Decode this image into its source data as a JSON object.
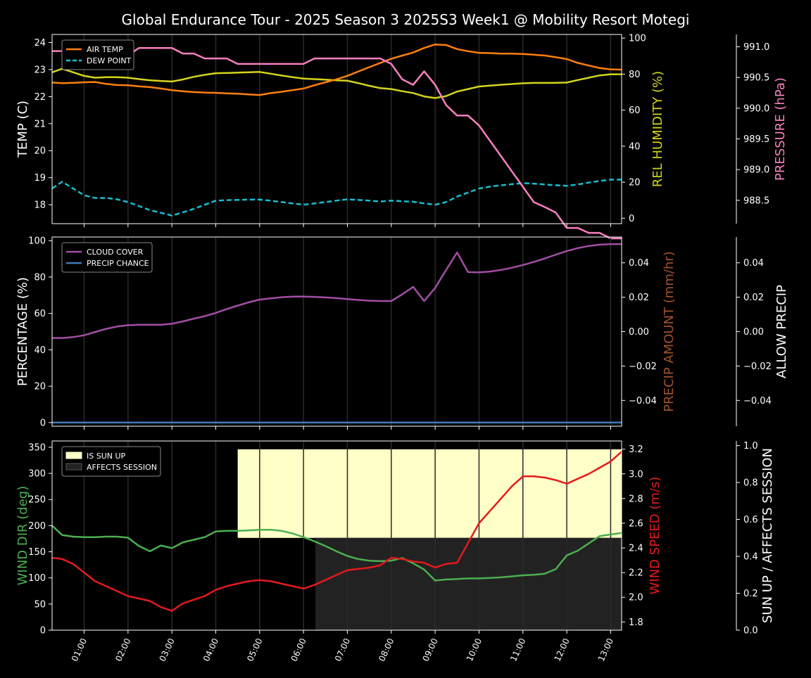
{
  "title": "Global Endurance Tour - 2025 Season 3 2025S3 Week1 @ Mobility Resort Motegi",
  "colors": {
    "air_temp": "#ff7f0e",
    "dew_point": "#17becf",
    "humidity": "#d4d41c",
    "pressure": "#f77fbf",
    "cloud": "#a24ea3",
    "precip_chance": "#4477bb",
    "precip_amount_label": "#a0522d",
    "wind_dir": "#4caf50",
    "wind_speed": "#e31a1c",
    "sun_up": "#ffffc8",
    "affects_session": "#222222"
  },
  "chart_data": [
    {
      "type": "line",
      "panel": "temperature",
      "xlabel": "",
      "x_ticks": [
        "01:00",
        "02:00",
        "03:00",
        "04:00",
        "05:00",
        "06:00",
        "07:00",
        "08:00",
        "09:00",
        "10:00",
        "11:00",
        "12:00",
        "13:00"
      ],
      "xlim": [
        0.27,
        13.25
      ],
      "ylabel": "TEMP (C)",
      "ylim": [
        17.3,
        24.3
      ],
      "y_ticks": [
        "18",
        "19",
        "20",
        "21",
        "22",
        "23",
        "24"
      ],
      "y2label": "REL HUMIDITY (%)",
      "y2lim": [
        -3,
        102
      ],
      "y2_ticks": [
        "0",
        "20",
        "40",
        "60",
        "80",
        "100"
      ],
      "y3label": "PRESSURE (hPa)",
      "y3lim": [
        988.12,
        991.2
      ],
      "y3_ticks": [
        "988.5",
        "989.0",
        "989.5",
        "990.0",
        "990.5",
        "991.0"
      ],
      "legend_position": "top-left",
      "series": [
        {
          "name": "AIR TEMP",
          "axis": "y",
          "style": "solid",
          "x": [
            0.27,
            0.5,
            0.75,
            1.0,
            1.25,
            1.5,
            1.75,
            2.0,
            2.25,
            2.5,
            2.75,
            3.0,
            3.25,
            3.5,
            3.75,
            4.0,
            4.25,
            4.5,
            4.75,
            5.0,
            5.25,
            5.5,
            5.75,
            6.0,
            6.25,
            6.5,
            6.75,
            7.0,
            7.25,
            7.5,
            7.75,
            8.0,
            8.25,
            8.5,
            8.75,
            9.0,
            9.25,
            9.5,
            9.75,
            10.0,
            10.25,
            10.5,
            10.75,
            11.0,
            11.25,
            11.5,
            11.75,
            12.0,
            12.25,
            12.5,
            12.75,
            13.0,
            13.25
          ],
          "values": [
            22.52,
            22.5,
            22.51,
            22.53,
            22.54,
            22.47,
            22.43,
            22.42,
            22.38,
            22.35,
            22.3,
            22.24,
            22.2,
            22.17,
            22.15,
            22.14,
            22.12,
            22.11,
            22.08,
            22.06,
            22.13,
            22.18,
            22.24,
            22.3,
            22.42,
            22.53,
            22.64,
            22.77,
            22.93,
            23.09,
            23.25,
            23.4,
            23.52,
            23.63,
            23.8,
            23.93,
            23.91,
            23.76,
            23.68,
            23.62,
            23.61,
            23.59,
            23.59,
            23.58,
            23.55,
            23.52,
            23.46,
            23.39,
            23.25,
            23.15,
            23.06,
            23.01,
            23.0
          ]
        },
        {
          "name": "DEW POINT",
          "axis": "y",
          "style": "dashed",
          "x": [
            0.27,
            0.5,
            0.75,
            1.0,
            1.25,
            1.5,
            1.75,
            2.0,
            2.25,
            2.5,
            2.75,
            3.0,
            3.25,
            3.5,
            3.75,
            4.0,
            4.25,
            4.5,
            4.75,
            5.0,
            5.25,
            5.5,
            5.75,
            6.0,
            6.25,
            6.5,
            6.75,
            7.0,
            7.25,
            7.5,
            7.75,
            8.0,
            8.25,
            8.5,
            8.75,
            9.0,
            9.25,
            9.5,
            9.75,
            10.0,
            10.25,
            10.5,
            10.75,
            11.0,
            11.25,
            11.5,
            11.75,
            12.0,
            12.25,
            12.5,
            12.75,
            13.0,
            13.25
          ],
          "values": [
            18.6,
            18.85,
            18.6,
            18.35,
            18.25,
            18.25,
            18.2,
            18.1,
            17.95,
            17.8,
            17.7,
            17.6,
            17.72,
            17.85,
            18.0,
            18.15,
            18.17,
            18.18,
            18.19,
            18.19,
            18.15,
            18.1,
            18.05,
            18.0,
            18.05,
            18.1,
            18.15,
            18.2,
            18.18,
            18.15,
            18.12,
            18.15,
            18.13,
            18.11,
            18.05,
            18.0,
            18.1,
            18.3,
            18.45,
            18.6,
            18.67,
            18.72,
            18.76,
            18.8,
            18.78,
            18.75,
            18.72,
            18.7,
            18.75,
            18.82,
            18.88,
            18.93,
            18.93
          ]
        },
        {
          "name": "REL HUMIDITY",
          "axis": "y2",
          "style": "solid",
          "x": [
            0.27,
            0.5,
            0.75,
            1.0,
            1.25,
            1.5,
            1.75,
            2.0,
            2.25,
            2.5,
            2.75,
            3.0,
            3.25,
            3.5,
            3.75,
            4.0,
            4.25,
            4.5,
            4.75,
            5.0,
            5.25,
            5.5,
            5.75,
            6.0,
            6.25,
            6.5,
            6.75,
            7.0,
            7.25,
            7.5,
            7.75,
            8.0,
            8.25,
            8.5,
            8.75,
            9.0,
            9.25,
            9.5,
            9.75,
            10.0,
            10.25,
            10.5,
            10.75,
            11.0,
            11.25,
            11.5,
            11.75,
            12.0,
            12.25,
            12.5,
            12.75,
            13.0,
            13.25
          ],
          "values": [
            81,
            83,
            81,
            79,
            78,
            78.3,
            78.3,
            78,
            77.2,
            76.6,
            76.2,
            75.9,
            77,
            78.5,
            79.6,
            80.5,
            80.6,
            80.8,
            81,
            81.2,
            80.2,
            79.2,
            78.3,
            77.5,
            77.2,
            76.9,
            76.5,
            76.3,
            75,
            73.5,
            72.2,
            71.7,
            70.5,
            69.5,
            67.6,
            66.7,
            67.8,
            70.3,
            71.7,
            73.1,
            73.6,
            74.1,
            74.5,
            74.9,
            75.1,
            75.1,
            75.2,
            75.3,
            76.7,
            78,
            79.3,
            79.9,
            79.9
          ]
        },
        {
          "name": "PRESSURE",
          "axis": "y3",
          "style": "solid",
          "x": [
            0.27,
            0.5,
            0.75,
            1.0,
            1.25,
            1.5,
            1.75,
            2.0,
            2.25,
            2.5,
            2.75,
            3.0,
            3.25,
            3.5,
            3.75,
            4.0,
            4.25,
            4.5,
            4.75,
            5.0,
            5.25,
            5.5,
            5.75,
            6.0,
            6.25,
            6.5,
            6.75,
            7.0,
            7.25,
            7.5,
            7.75,
            8.0,
            8.25,
            8.5,
            8.75,
            9.0,
            9.25,
            9.5,
            9.75,
            10.0,
            10.25,
            10.5,
            10.75,
            11.0,
            11.25,
            11.5,
            11.75,
            12.0,
            12.25,
            12.5,
            12.75,
            13.0,
            13.25
          ],
          "values": [
            990.93,
            990.93,
            991.02,
            991.1,
            991.06,
            990.98,
            990.9,
            990.86,
            990.98,
            990.98,
            990.98,
            990.98,
            990.89,
            990.89,
            990.81,
            990.81,
            990.81,
            990.72,
            990.72,
            990.72,
            990.72,
            990.72,
            990.72,
            990.72,
            990.81,
            990.81,
            990.81,
            990.81,
            990.81,
            990.81,
            990.81,
            990.72,
            990.47,
            990.38,
            990.6,
            990.38,
            990.05,
            989.88,
            989.88,
            989.72,
            989.47,
            989.22,
            988.97,
            988.72,
            988.47,
            988.39,
            988.3,
            988.05,
            988.05,
            987.97,
            987.97,
            987.88,
            987.88
          ]
        }
      ]
    },
    {
      "type": "line",
      "panel": "precipitation",
      "ylabel": "PERCENTAGE (%)",
      "ylim": [
        -2,
        102
      ],
      "y_ticks": [
        "0",
        "20",
        "40",
        "60",
        "80",
        "100"
      ],
      "y2label": "PRECIP AMOUNT (mm/hr)",
      "y2lim": [
        -0.055,
        0.055
      ],
      "y2_ticks": [
        "−0.04",
        "−0.02",
        "0.00",
        "0.02",
        "0.04"
      ],
      "y3label": "ALLOW PRECIP",
      "y3lim": [
        -0.055,
        0.055
      ],
      "y3_ticks": [
        "−0.04",
        "−0.02",
        "0.00",
        "0.02",
        "0.04"
      ],
      "legend_position": "top-left",
      "series": [
        {
          "name": "CLOUD COVER",
          "axis": "y",
          "x": [
            0.27,
            0.5,
            0.75,
            1.0,
            1.25,
            1.5,
            1.75,
            2.0,
            2.25,
            2.5,
            2.75,
            3.0,
            3.25,
            3.5,
            3.75,
            4.0,
            4.25,
            4.5,
            4.75,
            5.0,
            5.25,
            5.5,
            5.75,
            6.0,
            6.25,
            6.5,
            6.75,
            7.0,
            7.25,
            7.5,
            7.75,
            8.0,
            8.25,
            8.5,
            8.75,
            9.0,
            9.25,
            9.5,
            9.75,
            10.0,
            10.25,
            10.5,
            10.75,
            11.0,
            11.25,
            11.5,
            11.75,
            12.0,
            12.25,
            12.5,
            12.75,
            13.0,
            13.25
          ],
          "values": [
            46.5,
            46.5,
            47,
            48,
            49.8,
            51.5,
            52.8,
            53.5,
            53.8,
            53.8,
            53.8,
            54.3,
            55.6,
            57.1,
            58.5,
            60.3,
            62.4,
            64.3,
            66.1,
            67.6,
            68.3,
            68.9,
            69.2,
            69.3,
            69.1,
            68.8,
            68.4,
            67.9,
            67.4,
            67,
            66.8,
            66.8,
            70.5,
            74.6,
            66.8,
            74,
            83.9,
            93.5,
            82.7,
            82.6,
            83,
            83.9,
            85.1,
            86.6,
            88.3,
            90.2,
            92.3,
            94.3,
            95.9,
            97.1,
            97.8,
            98.1,
            98.1
          ]
        },
        {
          "name": "PRECIP CHANCE",
          "axis": "y",
          "x": [
            0.27,
            13.25
          ],
          "values": [
            0,
            0
          ]
        }
      ]
    },
    {
      "type": "line",
      "panel": "wind",
      "ylabel": "WIND DIR (deg)",
      "ylim": [
        0,
        362
      ],
      "y_ticks": [
        "0",
        "50",
        "100",
        "150",
        "200",
        "250",
        "300",
        "350"
      ],
      "y2label": "WIND SPEED (m/s)",
      "y2lim": [
        1.7333,
        3.2667
      ],
      "y2_ticks": [
        "1.8",
        "2.0",
        "2.2",
        "2.4",
        "2.6",
        "2.8",
        "3.0",
        "3.2"
      ],
      "y3label": "SUN UP / AFFECTS SESSION",
      "y3lim": [
        0,
        1.025
      ],
      "y3_ticks": [
        "0.0",
        "0.2",
        "0.4",
        "0.6",
        "0.8",
        "1.0"
      ],
      "x_ticks": [
        "01:00",
        "02:00",
        "03:00",
        "04:00",
        "05:00",
        "06:00",
        "07:00",
        "08:00",
        "09:00",
        "10:00",
        "11:00",
        "12:00",
        "13:00"
      ],
      "legend_position": "top-left",
      "areas": [
        {
          "name": "IS SUN UP",
          "x_start": 4.5,
          "x_end": 13.25,
          "y_bottom": 0.5,
          "y_top": 0.98
        },
        {
          "name": "AFFECTS SESSION",
          "x_start": 6.27,
          "x_end": 13.25,
          "y_bottom": 0,
          "y_top": 0.5
        }
      ],
      "series": [
        {
          "name": "WIND DIR",
          "axis": "y",
          "x": [
            0.27,
            0.5,
            0.75,
            1.0,
            1.25,
            1.5,
            1.75,
            2.0,
            2.25,
            2.5,
            2.75,
            3.0,
            3.25,
            3.5,
            3.75,
            4.0,
            4.25,
            4.5,
            4.75,
            5.0,
            5.25,
            5.5,
            5.75,
            6.0,
            6.25,
            6.5,
            6.75,
            7.0,
            7.25,
            7.5,
            7.75,
            8.0,
            8.25,
            8.5,
            8.75,
            9.0,
            9.25,
            9.5,
            9.75,
            10.0,
            10.25,
            10.5,
            10.75,
            11.0,
            11.25,
            11.5,
            11.75,
            12.0,
            12.25,
            12.5,
            12.75,
            13.0,
            13.25
          ],
          "values": [
            200,
            182,
            179,
            178,
            178,
            179,
            179,
            177,
            161,
            151,
            162,
            157,
            168,
            173,
            178,
            189,
            190,
            190,
            191,
            192,
            192,
            190,
            185,
            178,
            170,
            161,
            151,
            142,
            136,
            133,
            132,
            133,
            138,
            128,
            116,
            95,
            97,
            98,
            99,
            99,
            100,
            101,
            103,
            105,
            106,
            108,
            117,
            143,
            152,
            166,
            180,
            183,
            186
          ]
        },
        {
          "name": "WIND SPEED",
          "axis": "y2",
          "x": [
            0.27,
            0.5,
            0.75,
            1.0,
            1.25,
            1.5,
            1.75,
            2.0,
            2.25,
            2.5,
            2.75,
            3.0,
            3.25,
            3.5,
            3.75,
            4.0,
            4.25,
            4.5,
            4.75,
            5.0,
            5.25,
            5.5,
            5.75,
            6.0,
            6.25,
            6.5,
            6.75,
            7.0,
            7.25,
            7.5,
            7.75,
            8.0,
            8.25,
            8.5,
            8.75,
            9.0,
            9.25,
            9.5,
            9.75,
            10.0,
            10.25,
            10.5,
            10.75,
            11.0,
            11.25,
            11.5,
            11.75,
            12.0,
            12.25,
            12.5,
            12.75,
            13.0,
            13.25
          ],
          "values": [
            2.32,
            2.31,
            2.27,
            2.2,
            2.13,
            2.09,
            2.05,
            2.01,
            1.99,
            1.97,
            1.92,
            1.89,
            1.95,
            1.98,
            2.01,
            2.06,
            2.09,
            2.11,
            2.13,
            2.14,
            2.13,
            2.11,
            2.09,
            2.07,
            2.1,
            2.14,
            2.18,
            2.22,
            2.23,
            2.24,
            2.26,
            2.32,
            2.31,
            2.29,
            2.28,
            2.24,
            2.27,
            2.28,
            2.44,
            2.6,
            2.7,
            2.8,
            2.9,
            2.98,
            2.98,
            2.97,
            2.95,
            2.92,
            2.96,
            3.0,
            3.05,
            3.1,
            3.18
          ]
        }
      ]
    }
  ]
}
